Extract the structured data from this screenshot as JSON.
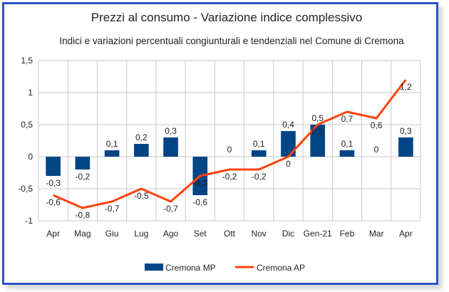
{
  "chart_data": {
    "type": "bar",
    "title": "Prezzi al consumo - Variazione indice complessivo",
    "subtitle": "Indici e variazioni percentuali congiunturali e tendenziali nel Comune di Cremona",
    "categories": [
      "Apr",
      "Mag",
      "Giu",
      "Lug",
      "Ago",
      "Set",
      "Ott",
      "Nov",
      "Dic",
      "Gen-21",
      "Feb",
      "Mar",
      "Apr"
    ],
    "ylim": [
      -1,
      1.5
    ],
    "yticks": [
      1.5,
      1,
      0.5,
      0,
      -0.5,
      -1
    ],
    "ytick_labels": [
      "1,5",
      "1",
      "0,5",
      "0",
      "-0,5",
      "-1"
    ],
    "grid": true,
    "legend_position": "bottom",
    "series": [
      {
        "name": "Cremona MP",
        "kind": "bar",
        "color": "#004586",
        "values": [
          -0.3,
          -0.2,
          0.1,
          0.2,
          0.3,
          -0.6,
          0,
          0.1,
          0.4,
          0.5,
          0.1,
          0,
          0.3
        ],
        "labels": [
          "-0,3",
          "-0,2",
          "0,1",
          "0,2",
          "0,3",
          "-0,6",
          "0",
          "0,1",
          "0,4",
          "0,5",
          "0,1",
          "0",
          "0,3"
        ]
      },
      {
        "name": "Cremona AP",
        "kind": "line",
        "color": "#ff420e",
        "values": [
          -0.6,
          -0.8,
          -0.7,
          -0.5,
          -0.7,
          -0.3,
          -0.2,
          -0.2,
          0,
          0.5,
          0.7,
          0.6,
          1.2
        ],
        "labels": [
          "-0,6",
          "-0,8",
          "-0,7",
          "-0,5",
          "-0,7",
          "-0,3",
          "-0,2",
          "-0,2",
          "0",
          "0,5",
          "0,7",
          "0,6",
          "1,2"
        ]
      }
    ]
  }
}
